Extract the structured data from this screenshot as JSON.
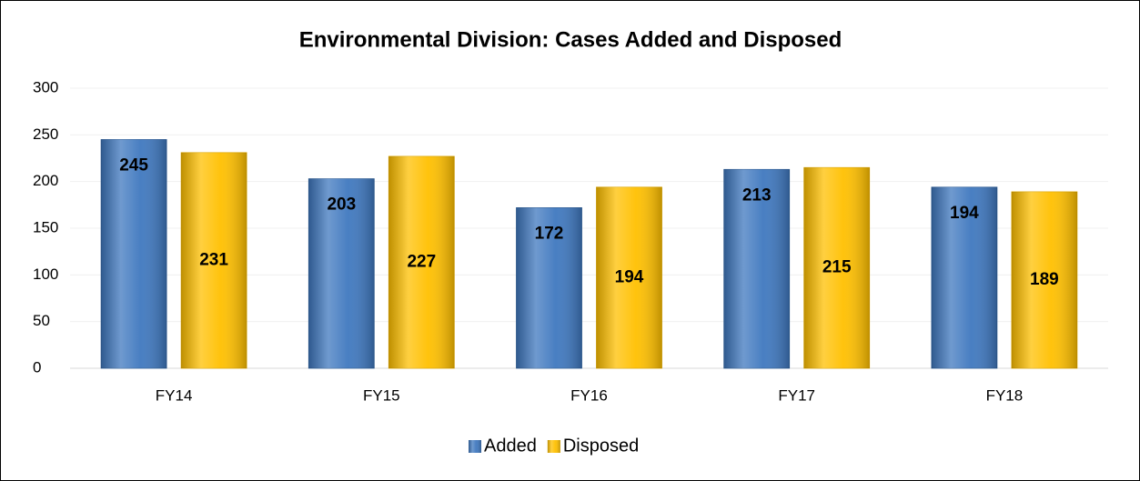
{
  "chart_data": {
    "type": "bar",
    "title": "Environmental Division: Cases Added and Disposed",
    "categories": [
      "FY14",
      "FY15",
      "FY16",
      "FY17",
      "FY18"
    ],
    "series": [
      {
        "name": "Added",
        "color": "#3f78bf",
        "values": [
          245,
          203,
          172,
          213,
          194
        ]
      },
      {
        "name": "Disposed",
        "color": "#ffc000",
        "values": [
          231,
          227,
          194,
          215,
          189
        ]
      }
    ],
    "ylim": [
      0,
      300
    ],
    "yticks": [
      0,
      50,
      100,
      150,
      200,
      250,
      300
    ],
    "grid": true,
    "legend": "bottom"
  }
}
